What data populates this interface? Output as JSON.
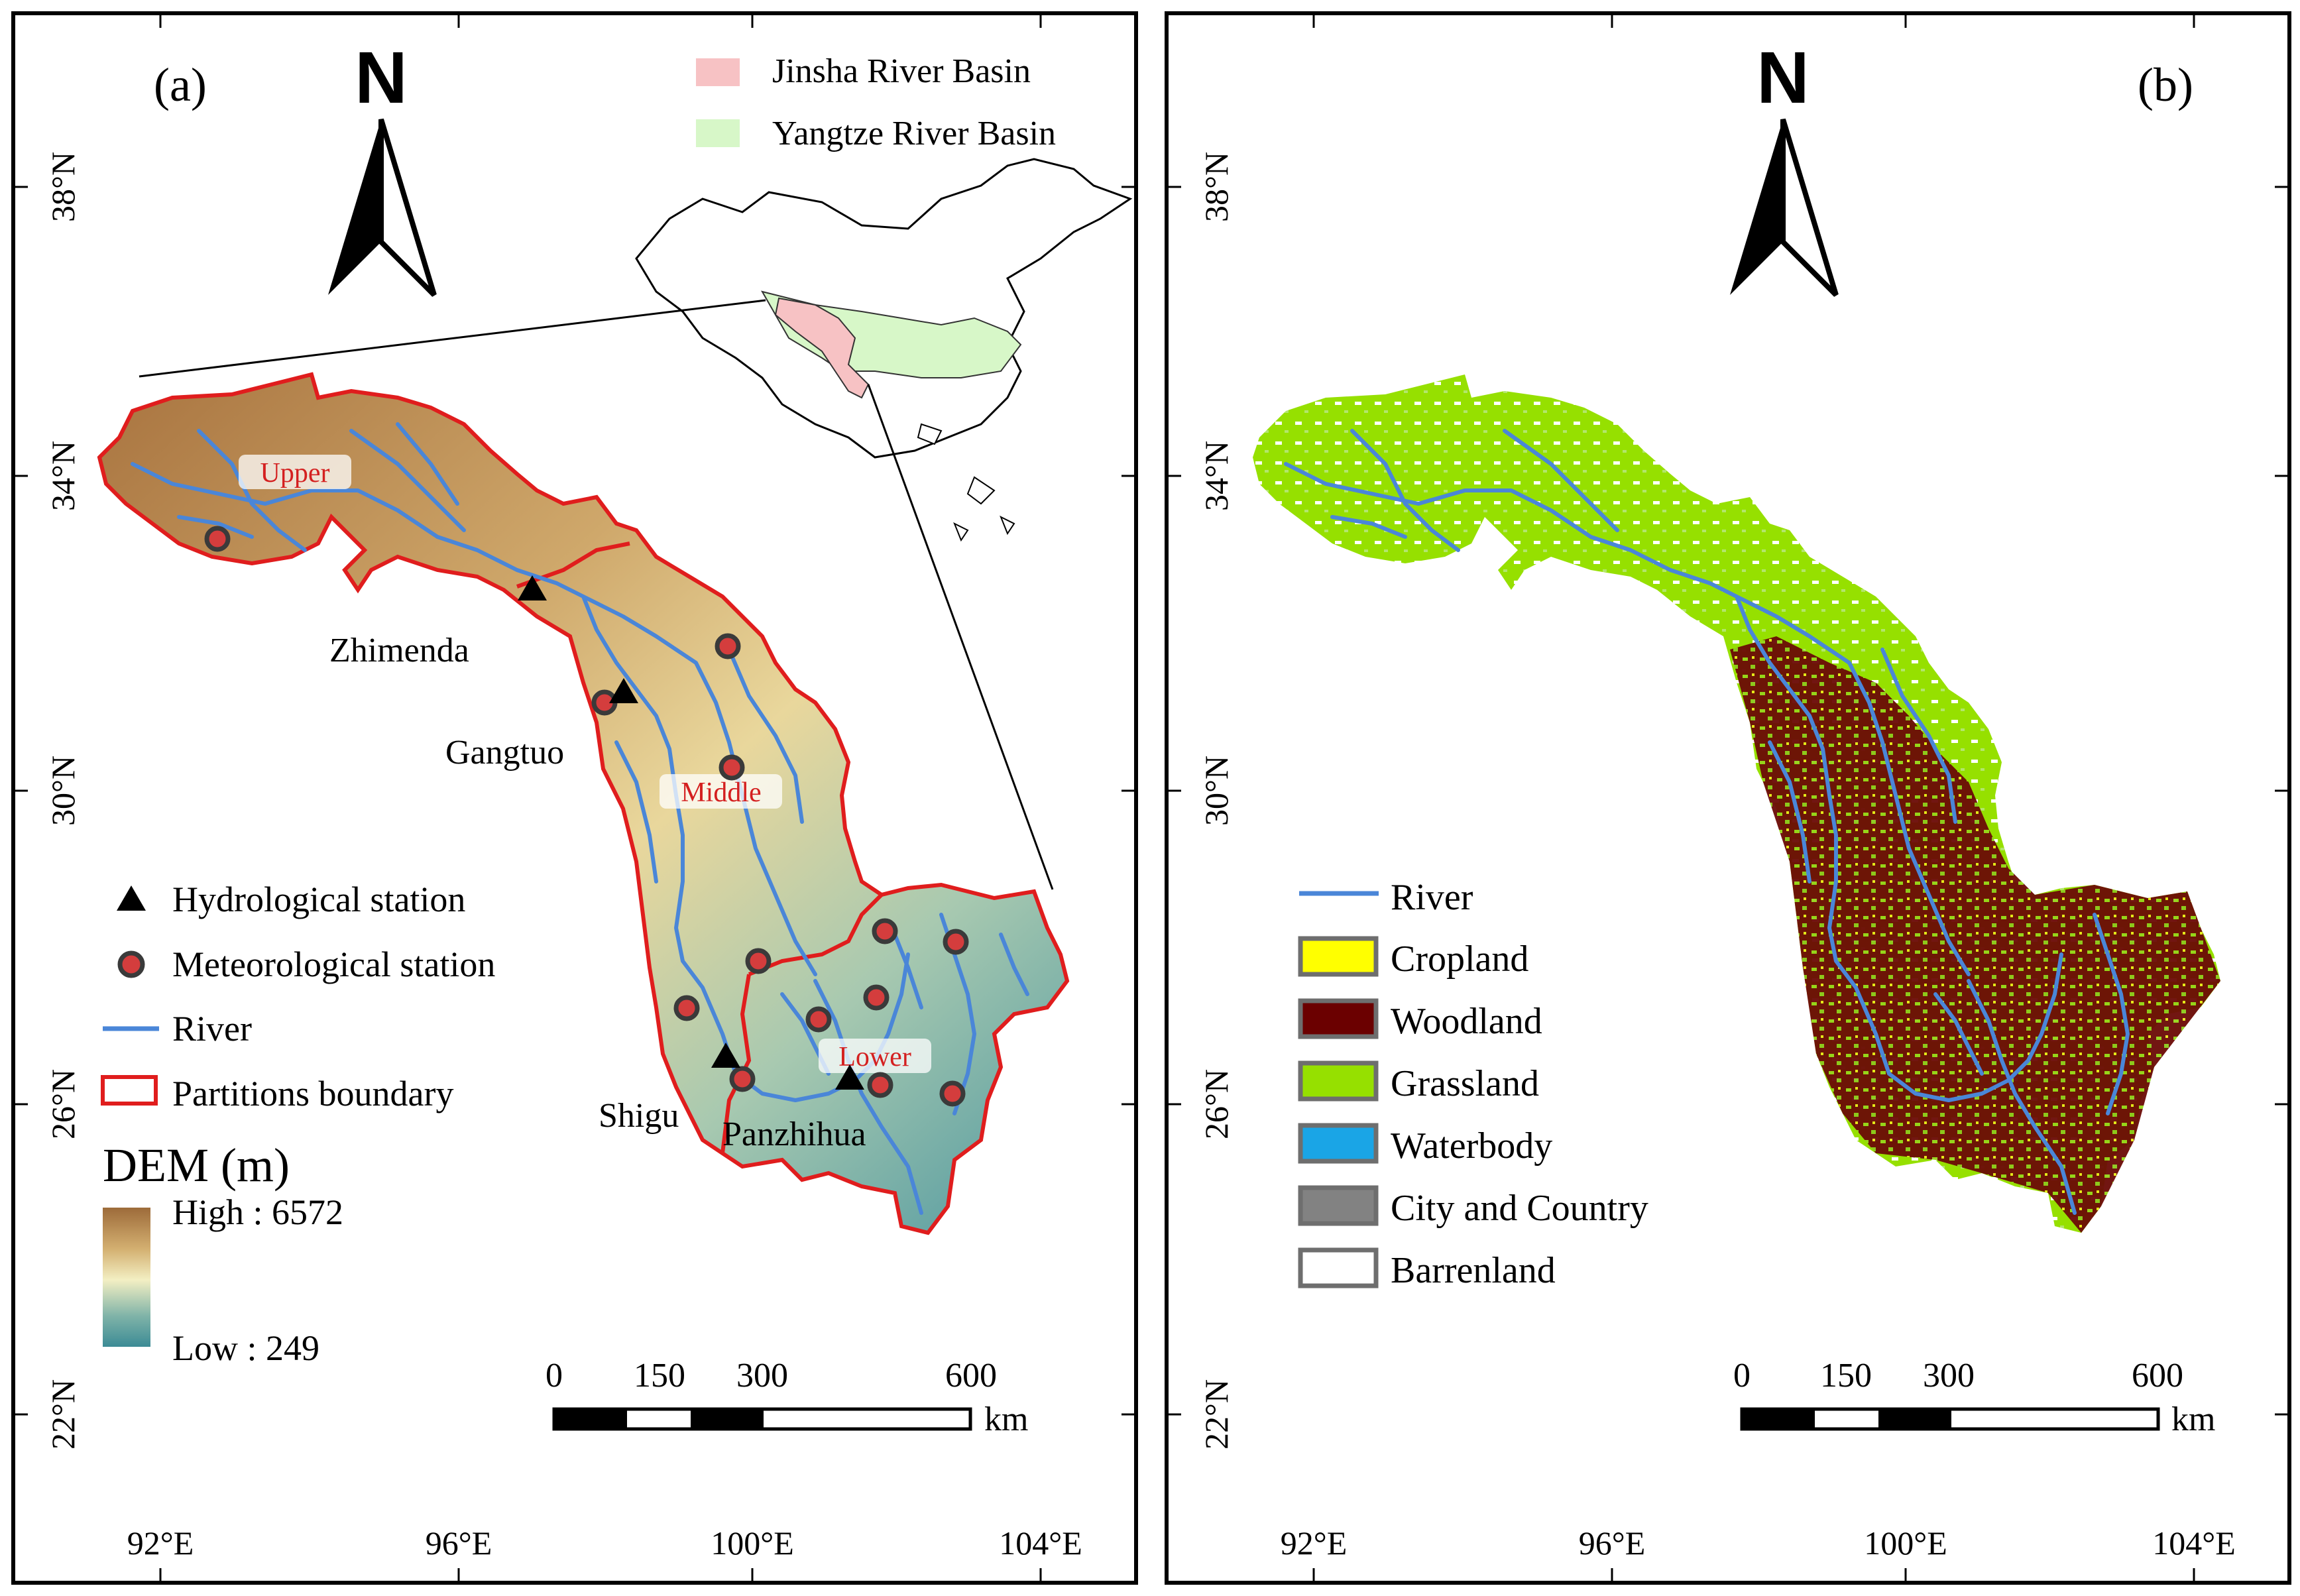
{
  "panel_a": {
    "label": "(a)",
    "north_letter": "N",
    "legend_top": [
      {
        "label": "Jinsha River Basin",
        "color": "#f7c2c4"
      },
      {
        "label": "Yangtze River Basin",
        "color": "#d7f7c8"
      }
    ],
    "legend_bottom": {
      "hydro": "Hydrological station",
      "meteo": "Meteorological station",
      "river": "River",
      "boundary": "Partitions boundary"
    },
    "dem": {
      "title": "DEM (m)",
      "high": "High : 6572",
      "low": "Low : 249",
      "colors": [
        "#9d6b3a",
        "#d4b071",
        "#f3efc3",
        "#7fb3a8",
        "#3c8b95"
      ]
    },
    "partitions": [
      "Upper",
      "Middle",
      "Lower"
    ],
    "stations": [
      "Zhimenda",
      "Gangtuo",
      "Shigu",
      "Panzhihua"
    ],
    "scale": {
      "ticks": [
        "0",
        "150",
        "300",
        "600"
      ],
      "unit": "km"
    },
    "lat_labels": [
      "38°N",
      "34°N",
      "30°N",
      "26°N",
      "22°N"
    ],
    "lon_labels": [
      "92°E",
      "96°E",
      "100°E",
      "104°E"
    ]
  },
  "panel_b": {
    "label": "(b)",
    "north_letter": "N",
    "legend": [
      {
        "label": "River",
        "kind": "line",
        "color": "#4a86d8"
      },
      {
        "label": "Cropland",
        "kind": "box",
        "color": "#ffff00"
      },
      {
        "label": "Woodland",
        "kind": "box",
        "color": "#6b0000"
      },
      {
        "label": "Grassland",
        "kind": "box",
        "color": "#96e000"
      },
      {
        "label": "Waterbody",
        "kind": "box",
        "color": "#1aa5e6"
      },
      {
        "label": "City and Country",
        "kind": "box",
        "color": "#828282"
      },
      {
        "label": "Barrenland",
        "kind": "box",
        "color": "#ffffff"
      }
    ],
    "scale": {
      "ticks": [
        "0",
        "150",
        "300",
        "600"
      ],
      "unit": "km"
    },
    "lat_labels": [
      "38°N",
      "34°N",
      "30°N",
      "26°N",
      "22°N"
    ],
    "lon_labels": [
      "92°E",
      "96°E",
      "100°E",
      "104°E"
    ]
  },
  "colors": {
    "river": "#4a86d8",
    "boundary": "#e01d1d",
    "station_fill": "#d43d3d",
    "partition_text": "#d42020"
  }
}
